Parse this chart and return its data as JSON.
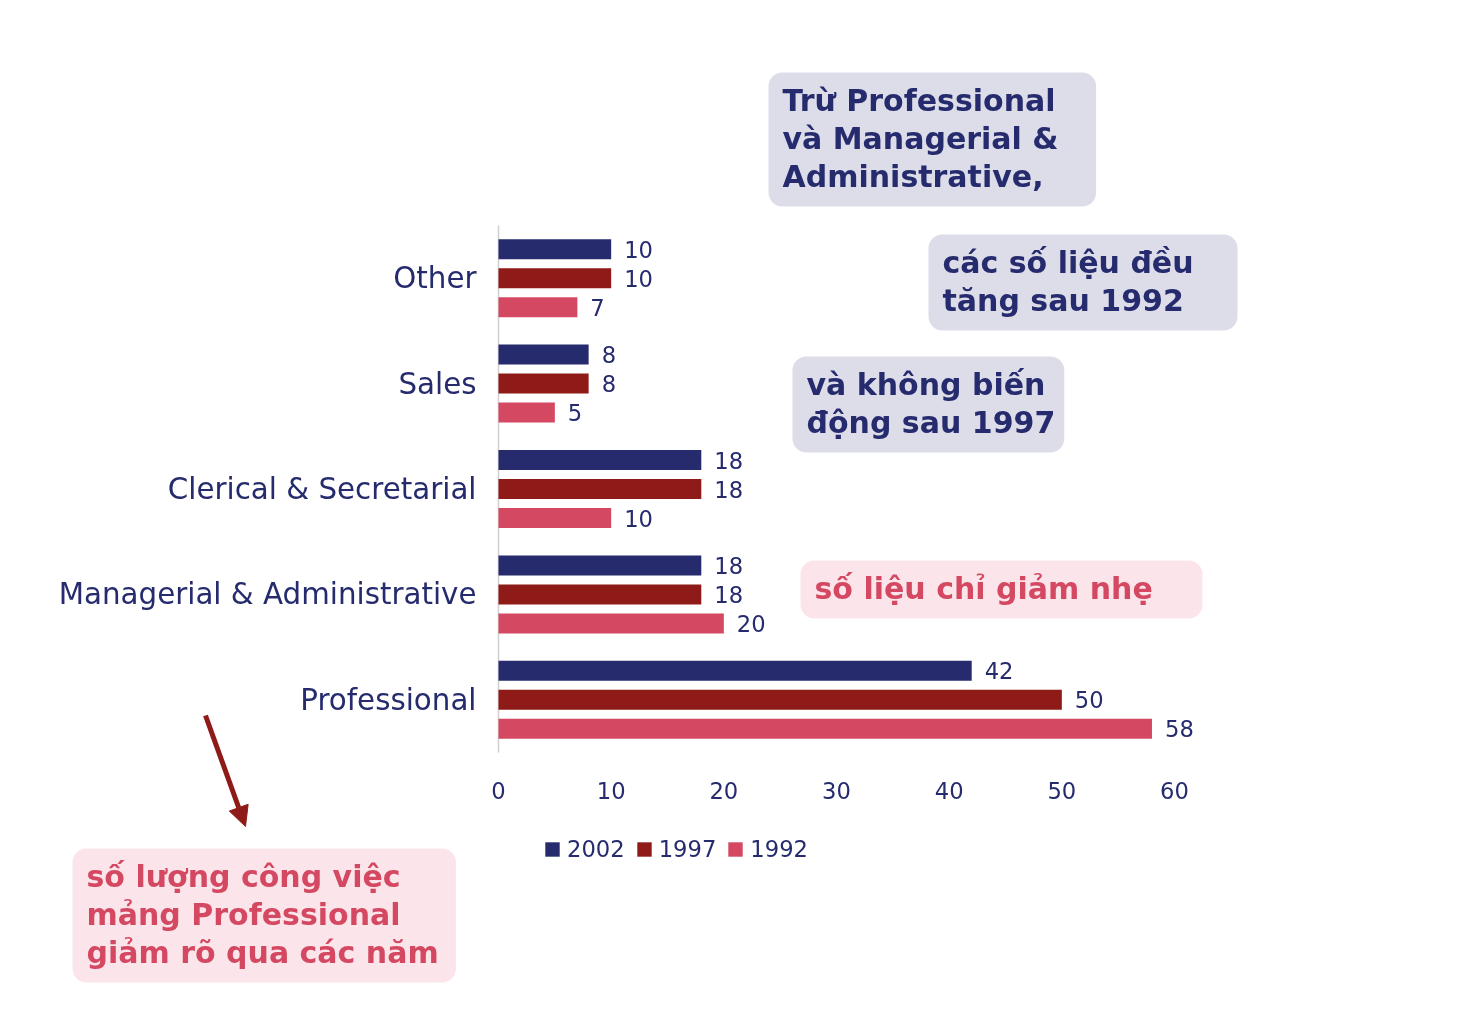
{
  "chart_data": {
    "type": "bar",
    "orientation": "horizontal",
    "categories": [
      "Other",
      "Sales",
      "Clerical & Secretarial",
      "Managerial & Administrative",
      "Professional"
    ],
    "series": [
      {
        "name": "2002",
        "color": "#262b6e",
        "values": [
          10,
          8,
          18,
          18,
          42
        ]
      },
      {
        "name": "1997",
        "color": "#8e1b17",
        "values": [
          10,
          8,
          18,
          18,
          50
        ]
      },
      {
        "name": "1992",
        "color": "#d44862",
        "values": [
          7,
          5,
          10,
          20,
          58
        ]
      }
    ],
    "xlim": [
      0,
      60
    ],
    "xticks": [
      0,
      10,
      20,
      30,
      40,
      50,
      60
    ],
    "grid": false,
    "legend": "bottom",
    "data_labels": true,
    "annotations": [
      "Trừ Professional\nvà  Managerial &\nAdministrative,",
      "các số liệu đều\ntăng sau 1992",
      "và không biến\nđộng sau 1997",
      "số liệu chỉ giảm nhẹ",
      "số lượng công việc\nmảng   Professional\ngiảm rõ qua các năm"
    ]
  }
}
